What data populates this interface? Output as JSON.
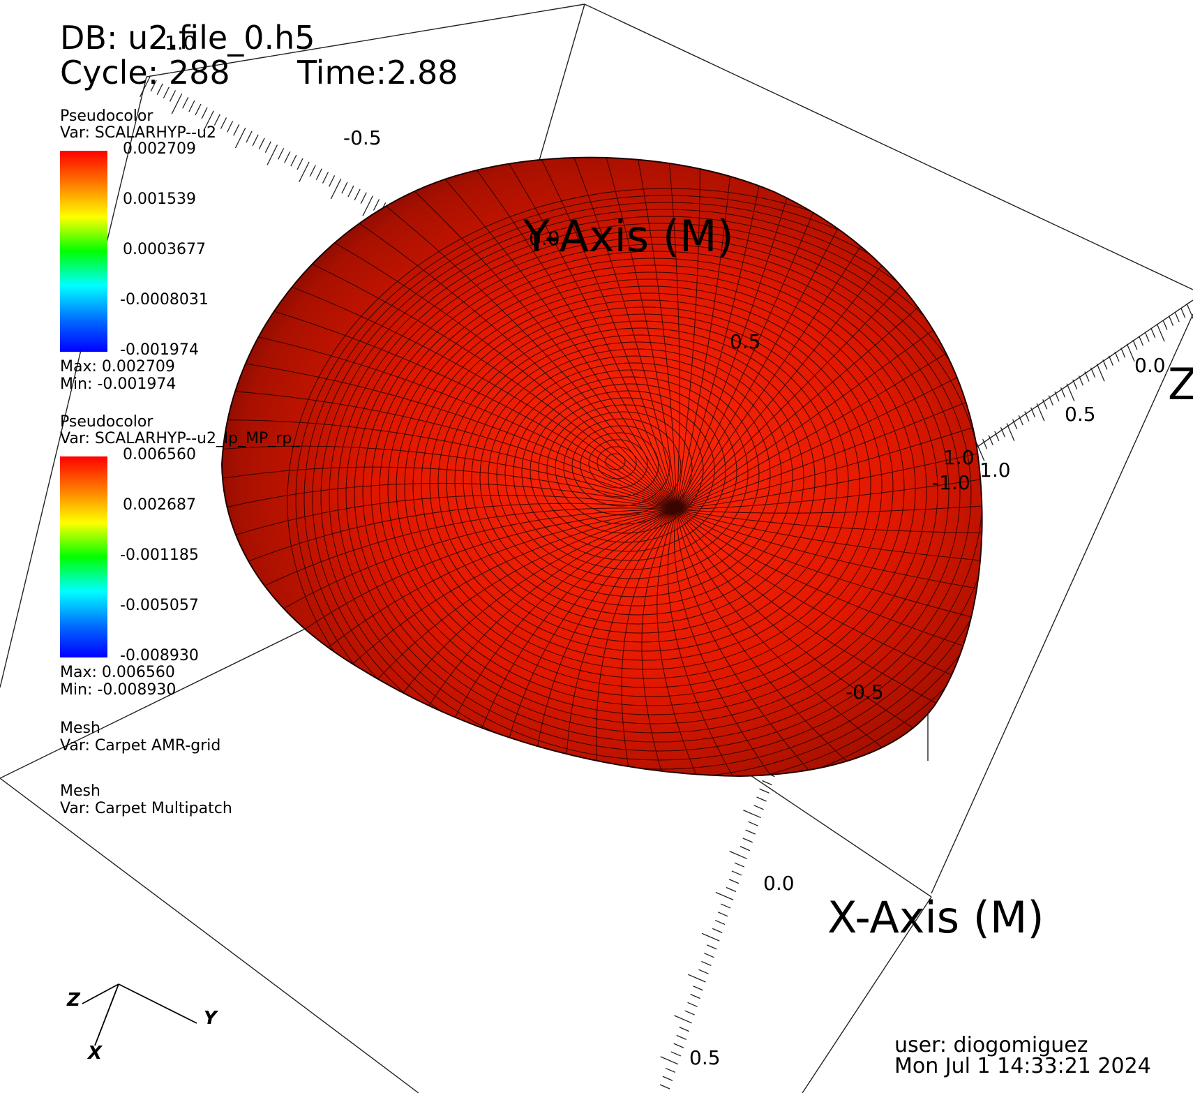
{
  "header": {
    "db": "DB: u2.file_0.h5",
    "cycle": "Cycle: 288",
    "time": "Time:2.88"
  },
  "legends": [
    {
      "plot": "Pseudocolor",
      "var": "Var: SCALARHYP--u2",
      "ticks": [
        "0.002709",
        "0.001539",
        "0.0003677",
        "-0.0008031",
        "-0.001974"
      ],
      "max": "Max:  0.002709",
      "min": "Min: -0.001974"
    },
    {
      "plot": "Pseudocolor",
      "var": "Var: SCALARHYP--u2_lp_MP_rp_",
      "ticks": [
        "0.006560",
        "0.002687",
        "-0.001185",
        "-0.005057",
        "-0.008930"
      ],
      "max": "Max:  0.006560",
      "min": "Min: -0.008930"
    },
    {
      "plot": "Mesh",
      "var": "Var: Carpet AMR-grid"
    },
    {
      "plot": "Mesh",
      "var": "Var: Carpet Multipatch"
    }
  ],
  "axes": {
    "x_title": "X-Axis (M)",
    "y_title": "Y-Axis (M)",
    "z_title": "Z",
    "tick_labels": [
      "1.0",
      "-0.5",
      "0.0",
      "0.5",
      "0.0",
      "0.5",
      "1.0",
      "-1.0",
      "1.0",
      "-0.5",
      "0.0",
      "0.5"
    ]
  },
  "triad": {
    "x": "X",
    "y": "Y",
    "z": "Z"
  },
  "footer": {
    "user": "user: diogomiguez",
    "date": "Mon Jul  1 14:33:21 2024"
  },
  "colors": {
    "surface": "#e61a00",
    "surface_dark": "#7a0a00",
    "mesh": "#1a0000",
    "background": "#ffffff"
  }
}
